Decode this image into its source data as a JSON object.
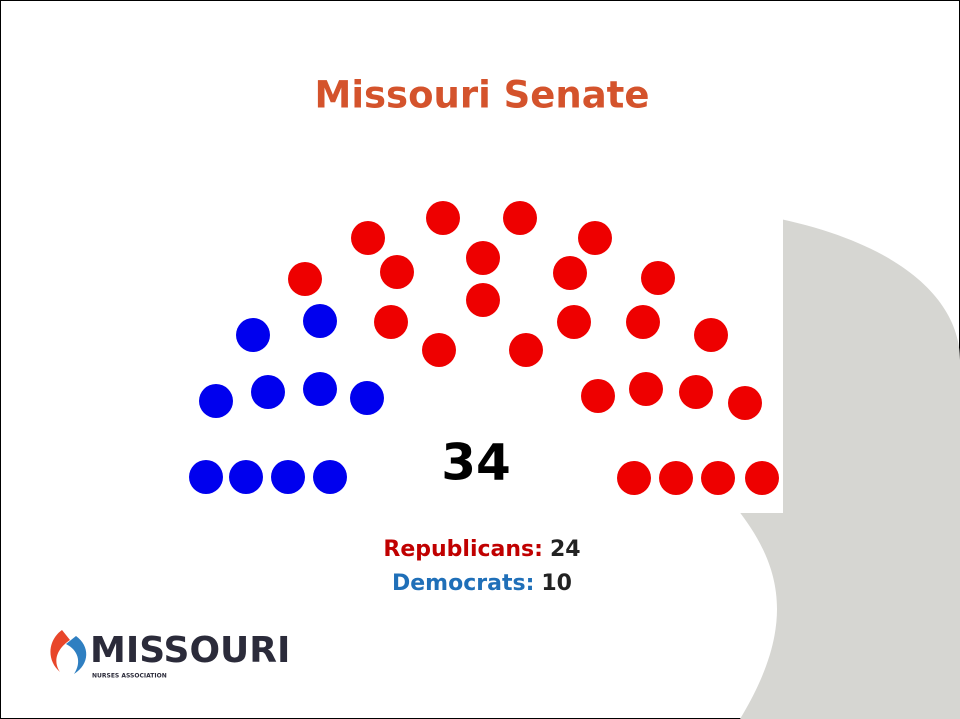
{
  "chart_data": {
    "type": "parliament",
    "title": "Missouri Senate",
    "total": 34,
    "series": [
      {
        "name": "Democrats:",
        "color": "#0000ee",
        "label_color": "#1f6fb8",
        "values": [
          10
        ]
      },
      {
        "name": "Republicans:",
        "color": "#ee0000",
        "label_color": "#c00000",
        "values": [
          24
        ]
      }
    ]
  },
  "logo": {
    "name": "MISSOURI",
    "tagline": "NURSES ASSOCIATION"
  }
}
